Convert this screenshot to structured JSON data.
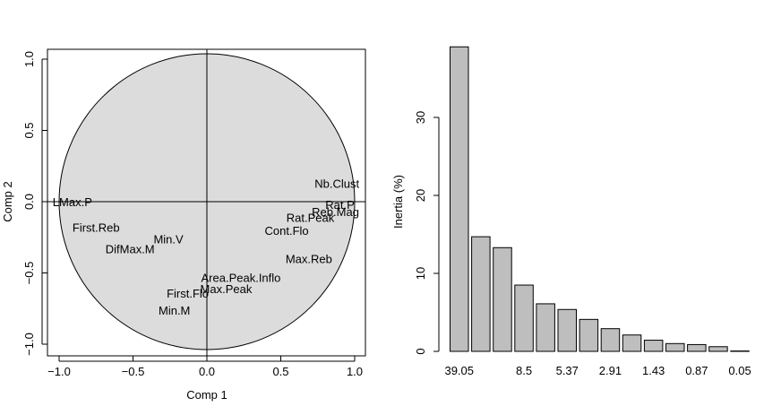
{
  "chart_data": [
    {
      "type": "scatter",
      "xlabel": "Comp 1",
      "ylabel": "Comp 2",
      "xlim": [
        -1.07,
        1.07
      ],
      "ylim": [
        -1.07,
        1.07
      ],
      "xticks": [
        "−1.0",
        "−0.5",
        "0.0",
        "0.5",
        "1.0"
      ],
      "yticks": [
        "−1.0",
        "−0.5",
        "0.0",
        "0.5",
        "1.0"
      ],
      "xtick_values": [
        -1.0,
        -0.5,
        0.0,
        0.5,
        1.0
      ],
      "ytick_values": [
        -1.0,
        -0.5,
        0.0,
        0.5,
        1.0
      ],
      "circle_radius": 1.0,
      "circle_color": "#dcdcdc",
      "points": [
        {
          "label": "Nb.Clust",
          "x": 0.88,
          "y": 0.13
        },
        {
          "label": "Rat.P",
          "x": 0.9,
          "y": -0.02
        },
        {
          "label": "Reb.Mag",
          "x": 0.87,
          "y": -0.07
        },
        {
          "label": "Rat.Peak",
          "x": 0.7,
          "y": -0.11
        },
        {
          "label": "Cont.Flo",
          "x": 0.54,
          "y": -0.2
        },
        {
          "label": "Max.Reb",
          "x": 0.69,
          "y": -0.4
        },
        {
          "label": "LMax.P",
          "x": -0.91,
          "y": -0.0
        },
        {
          "label": "First.Reb",
          "x": -0.75,
          "y": -0.18
        },
        {
          "label": "Min.V",
          "x": -0.26,
          "y": -0.26
        },
        {
          "label": "DifMax.M",
          "x": -0.52,
          "y": -0.33
        },
        {
          "label": "Area.Peak.Inflo",
          "x": 0.23,
          "y": -0.53
        },
        {
          "label": "Max.Peak",
          "x": 0.13,
          "y": -0.61
        },
        {
          "label": "First.Flo",
          "x": -0.13,
          "y": -0.64
        },
        {
          "label": "Min.M",
          "x": -0.22,
          "y": -0.76
        }
      ]
    },
    {
      "type": "bar",
      "ylabel": "Inertia (%)",
      "ylim": [
        0,
        40
      ],
      "yticks": [
        "0",
        "10",
        "20",
        "30"
      ],
      "ytick_values": [
        0,
        10,
        20,
        30
      ],
      "categories": [
        "39.05",
        "14.7",
        "13.3",
        "8.5",
        "6.1",
        "5.37",
        "4.1",
        "2.91",
        "2.1",
        "1.43",
        "1.0",
        "0.87",
        "0.6",
        "0.05"
      ],
      "values": [
        39.05,
        14.7,
        13.3,
        8.5,
        6.1,
        5.37,
        4.1,
        2.91,
        2.1,
        1.43,
        1.0,
        0.87,
        0.6,
        0.05
      ],
      "shown_category_labels": [
        "39.05",
        "8.5",
        "5.37",
        "2.91",
        "1.43",
        "0.87",
        "0.05"
      ],
      "bar_color": "#bebebe"
    }
  ]
}
